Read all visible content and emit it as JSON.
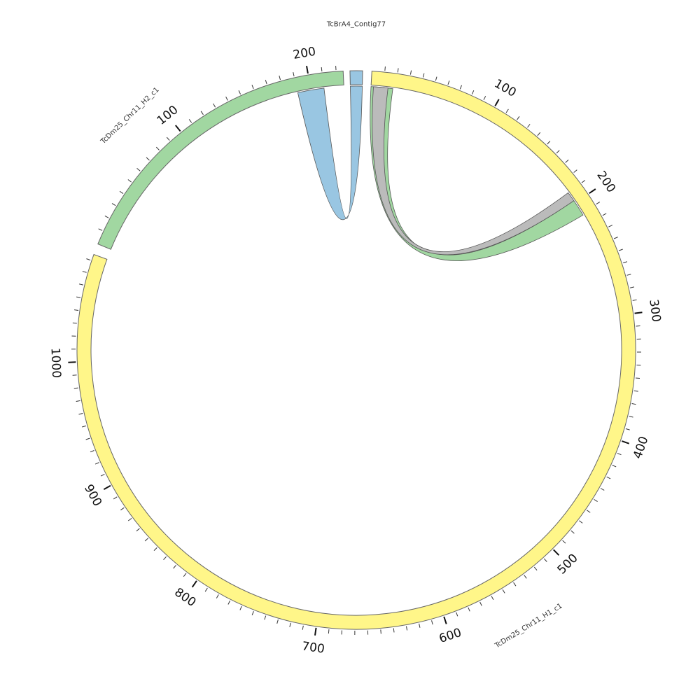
{
  "diagram": {
    "type": "circos",
    "segments": [
      {
        "id": "contig77",
        "name": "TcBrA4_Contig77",
        "color": "#99c6e2",
        "length": 20,
        "major_ticks": []
      },
      {
        "id": "h1",
        "name": "TcDm25_Chr11_H1_c1",
        "color": "#fff689",
        "length": 1085,
        "major_ticks": [
          "100",
          "200",
          "300",
          "400",
          "500",
          "600",
          "700",
          "800",
          "900",
          "1000"
        ]
      },
      {
        "id": "h2",
        "name": "TcDm25_Chr11_H2_c1",
        "color": "#a1d7a1",
        "length": 225,
        "major_ticks": [
          "100",
          "200"
        ]
      }
    ],
    "links": [
      {
        "from": {
          "segment": "contig77",
          "start": 0,
          "end": 20
        },
        "to": {
          "segment": "h2",
          "start": 190,
          "end": 210
        },
        "color": "#99c6e2"
      },
      {
        "from": {
          "segment": "h1",
          "start": 0,
          "end": 18
        },
        "to": {
          "segment": "h1",
          "start": 198,
          "end": 212
        },
        "color": "#a1d7a1"
      },
      {
        "from": {
          "segment": "h1",
          "start": 2,
          "end": 14
        },
        "to": {
          "segment": "h1",
          "start": 190,
          "end": 198
        },
        "color": "#bbbbbb"
      }
    ]
  }
}
